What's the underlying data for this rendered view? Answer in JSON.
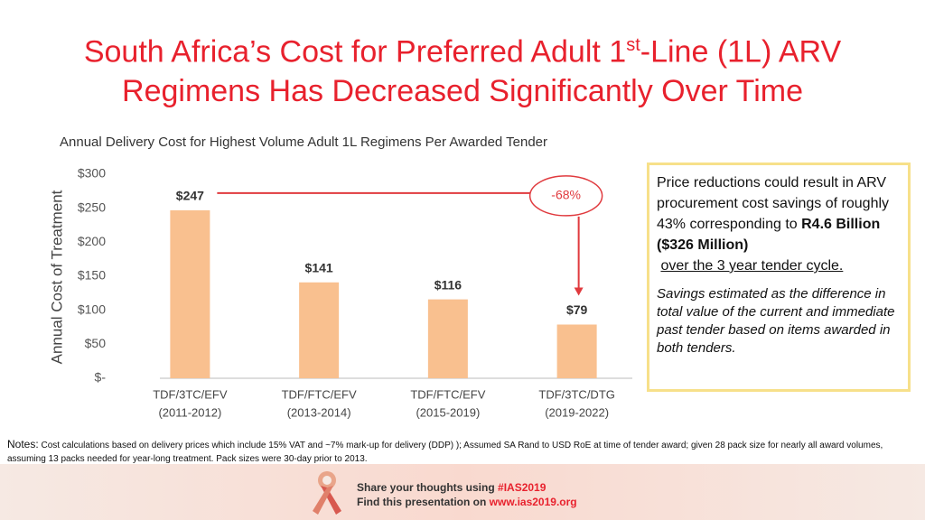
{
  "title": {
    "before": "South Africa’s Cost for Preferred Adult 1",
    "sup": "st",
    "after": "-Line (1L) ARV Regimens Has Decreased Significantly Over Time"
  },
  "chart_data": {
    "type": "bar",
    "subtitle": "Annual Delivery Cost for Highest Volume Adult 1L Regimens Per Awarded Tender",
    "y_label": "Annual Cost of Treatment",
    "categories": [
      "TDF/3TC/EFV",
      "TDF/FTC/EFV",
      "TDF/FTC/EFV",
      "TDF/3TC/DTG"
    ],
    "periods": [
      "(2011-2012)",
      "(2013-2014)",
      "(2015-2019)",
      "(2019-2022)"
    ],
    "values": [
      247,
      141,
      116,
      79
    ],
    "value_labels": [
      "$247",
      "$141",
      "$116",
      "$79"
    ],
    "color": "#f9c08f",
    "ylim": [
      0,
      300
    ],
    "yticks": [
      {
        "value": 0,
        "label": "$-"
      },
      {
        "value": 50,
        "label": "$50"
      },
      {
        "value": 100,
        "label": "$100"
      },
      {
        "value": 150,
        "label": "$150"
      },
      {
        "value": 200,
        "label": "$200"
      },
      {
        "value": 250,
        "label": "$250"
      },
      {
        "value": 300,
        "label": "$300"
      }
    ],
    "annotation": "-68%"
  },
  "callout": {
    "text": "Price reductions could result in  ARV procurement cost savings of roughly 43% corresponding to ",
    "bold": "R4.6 Billion ($326 Million)",
    "underline": "over the 3 year tender cycle.",
    "note": "Savings estimated as the difference in total value of the current and immediate past tender based on items awarded in both tenders."
  },
  "notes": {
    "label": "Notes:",
    "text": "Cost calculations based on delivery prices which include 15% VAT and ~7% mark-up for delivery (DDP) ); Assumed SA Rand to USD RoE at time of tender award; given 28 pack size for nearly all award volumes, assuming 13 packs needed for year-long treatment. Pack sizes were 30-day prior to 2013."
  },
  "footer": {
    "share": "Share your thoughts using ",
    "hashtag": "#IAS2019",
    "find": "Find this presentation on ",
    "url": "www.ias2019.org"
  }
}
